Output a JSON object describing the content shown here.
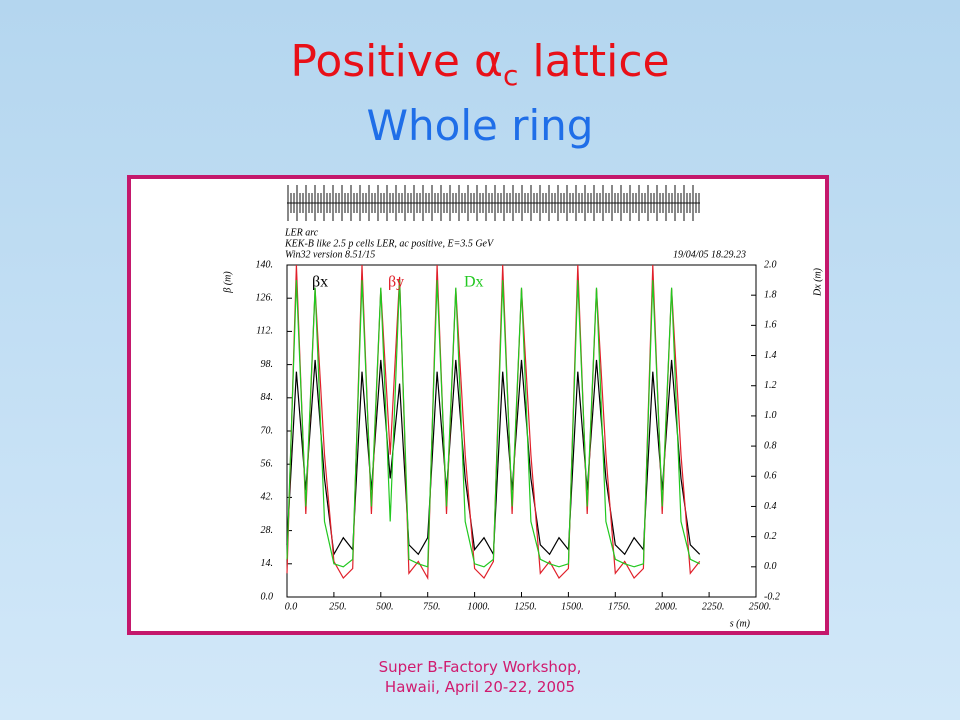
{
  "slide": {
    "title": {
      "word1": "Positive",
      "symbol": "α",
      "subscript": "c",
      "word2": "lattice"
    },
    "subtitle": "Whole ring",
    "footer": [
      "Super B-Factory Workshop,",
      "Hawaii, April 20-22, 2005"
    ]
  },
  "chart_data": {
    "type": "line",
    "header": [
      "LER arc",
      "KEK-B like 2.5 p cells LER, ac positive, E=3.5 GeV",
      "Win32 version 8.51/15"
    ],
    "timestamp": "19/04/05  18.29.23",
    "xlabel": "s (m)",
    "ylabel": "β (m)",
    "y2label": "Dx (m)",
    "x": [
      0,
      50,
      100,
      150,
      200,
      250,
      300,
      350,
      400,
      450,
      500,
      550,
      600,
      650,
      700,
      750,
      800,
      850,
      900,
      950,
      1000,
      1050,
      1100,
      1150,
      1200,
      1250,
      1300,
      1350,
      1400,
      1450,
      1500,
      1550,
      1600,
      1650,
      1700,
      1750,
      1800,
      1850,
      1900,
      1950,
      2000,
      2050,
      2100,
      2150,
      2200
    ],
    "series": [
      {
        "name": "βx",
        "color": "#000000",
        "values": [
          22,
          95,
          45,
          100,
          50,
          18,
          25,
          20,
          95,
          45,
          100,
          50,
          90,
          22,
          18,
          25,
          95,
          45,
          100,
          50,
          20,
          25,
          18,
          95,
          45,
          100,
          50,
          22,
          18,
          25,
          20,
          95,
          45,
          100,
          50,
          22,
          18,
          25,
          20,
          95,
          45,
          100,
          50,
          22,
          18
        ]
      },
      {
        "name": "βy",
        "color": "#e0202a",
        "values": [
          10,
          140,
          35,
          130,
          60,
          15,
          8,
          12,
          140,
          35,
          130,
          60,
          135,
          10,
          15,
          8,
          140,
          35,
          130,
          60,
          12,
          8,
          15,
          140,
          35,
          130,
          60,
          10,
          15,
          8,
          12,
          140,
          35,
          130,
          60,
          10,
          15,
          8,
          12,
          140,
          35,
          130,
          60,
          10,
          15
        ]
      },
      {
        "name": "Dx",
        "color": "#22c820",
        "axis": "y2",
        "values": [
          0.05,
          1.9,
          0.4,
          1.85,
          0.3,
          0.02,
          0,
          0.05,
          1.9,
          0.4,
          1.85,
          0.3,
          1.9,
          0.05,
          0.02,
          0,
          1.9,
          0.4,
          1.85,
          0.3,
          0.02,
          0,
          0.05,
          1.9,
          0.4,
          1.85,
          0.3,
          0.05,
          0.02,
          0,
          0.02,
          1.9,
          0.4,
          1.85,
          0.3,
          0.05,
          0.02,
          0,
          0.02,
          1.9,
          0.4,
          1.85,
          0.3,
          0.05,
          0.02
        ]
      }
    ],
    "xlim": [
      0,
      2500
    ],
    "xticks": [
      {
        "value": 0,
        "label": "0.0"
      },
      {
        "value": 250,
        "label": "250."
      },
      {
        "value": 500,
        "label": "500."
      },
      {
        "value": 750,
        "label": "750."
      },
      {
        "value": 1000,
        "label": "1000."
      },
      {
        "value": 1250,
        "label": "1250."
      },
      {
        "value": 1500,
        "label": "1500."
      },
      {
        "value": 1750,
        "label": "1750."
      },
      {
        "value": 2000,
        "label": "2000."
      },
      {
        "value": 2250,
        "label": "2250."
      },
      {
        "value": 2500,
        "label": "2500."
      }
    ],
    "ylim": [
      0,
      140
    ],
    "yticks": [
      {
        "value": 0,
        "label": "0.0"
      },
      {
        "value": 14,
        "label": "14."
      },
      {
        "value": 28,
        "label": "28."
      },
      {
        "value": 42,
        "label": "42."
      },
      {
        "value": 56,
        "label": "56."
      },
      {
        "value": 70,
        "label": "70."
      },
      {
        "value": 84,
        "label": "84."
      },
      {
        "value": 98,
        "label": "98."
      },
      {
        "value": 112,
        "label": "112."
      },
      {
        "value": 126,
        "label": "126."
      },
      {
        "value": 140,
        "label": "140."
      }
    ],
    "y2lim": [
      -0.2,
      2.0
    ],
    "y2ticks": [
      -0.2,
      {
        "value": 0,
        "label": "0.0"
      },
      0.2,
      0.4,
      0.6,
      0.8,
      {
        "value": 1,
        "label": "1.0"
      },
      1.2,
      1.4,
      1.6,
      1.8,
      {
        "value": 2,
        "label": "2.0"
      }
    ]
  }
}
